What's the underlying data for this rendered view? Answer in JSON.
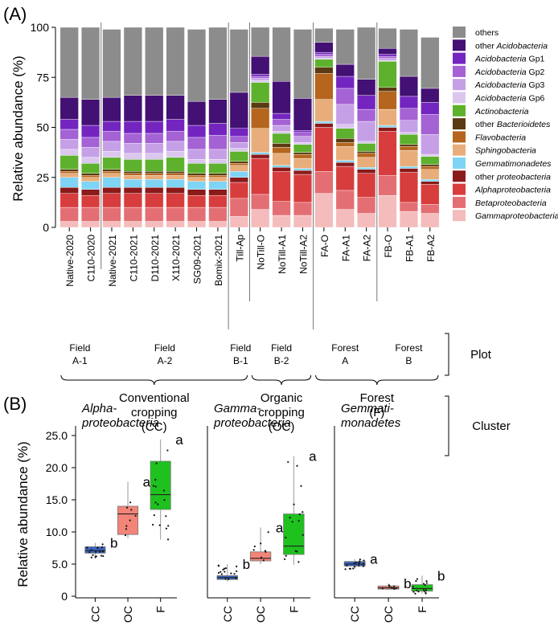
{
  "chart_data": [
    {
      "panel_label": "(A)",
      "type": "bar",
      "stacked": true,
      "ylabel": "Relative abundance (%)",
      "ylim": [
        0,
        100
      ],
      "yticks": [
        0,
        25,
        50,
        75,
        100
      ],
      "categories": [
        "Native-2020",
        "C110-2020",
        "Native-2021",
        "C110-2021",
        "D110-2021",
        "X110-2021",
        "SG09-2021",
        "Bomix-2021",
        "Till-Ap",
        "NoTill-O",
        "NoTill-A1",
        "NoTill-A2",
        "FA-O",
        "FA-A1",
        "FA-A2",
        "FB-O",
        "FB-A1",
        "FB-A2"
      ],
      "series": [
        {
          "name": "Gammaproteobacteria",
          "color": "#f4bcbc",
          "values": [
            3,
            3,
            3,
            3,
            3,
            3,
            3,
            3,
            5.5,
            9,
            6,
            6,
            17,
            9,
            7,
            16,
            8,
            7
          ]
        },
        {
          "name": "Betaproteobacteria",
          "color": "#e36f74",
          "values": [
            7,
            7,
            7,
            7,
            7,
            7,
            7,
            7,
            9,
            7.5,
            7,
            6.5,
            11,
            9.5,
            8,
            10,
            4.5,
            4.5
          ]
        },
        {
          "name": "Alphaproteobacteria",
          "color": "#d83d3e",
          "values": [
            7,
            6,
            7,
            7,
            7,
            7,
            6,
            6,
            8,
            18,
            15,
            14,
            22,
            12,
            12,
            22,
            15,
            10
          ]
        },
        {
          "name": "other proteobacteria",
          "color": "#8b1a1a",
          "values": [
            3,
            3,
            3,
            3,
            3,
            3,
            3,
            3,
            2.5,
            2,
            2,
            2,
            2,
            2,
            2,
            2,
            2,
            1.5
          ]
        },
        {
          "name": "Gemmatimonadetes",
          "color": "#7fd4f5",
          "values": [
            5,
            4,
            5,
            4,
            4,
            4,
            4,
            4,
            3,
            1,
            1,
            1,
            1,
            1,
            1,
            1,
            1,
            1
          ]
        },
        {
          "name": "Sphingobacteria",
          "color": "#e8ad7a",
          "values": [
            2,
            2,
            2,
            2,
            2,
            2,
            2,
            2,
            3,
            12,
            6,
            5,
            11,
            7,
            5,
            8,
            8,
            5
          ]
        },
        {
          "name": "Flavobacteria",
          "color": "#b5651d",
          "values": [
            1,
            1,
            1,
            1,
            1,
            1,
            1,
            1,
            1,
            10,
            3,
            2,
            13,
            2,
            2,
            9,
            2,
            1.5
          ]
        },
        {
          "name": "other Bacterioidetes",
          "color": "#5a3a12",
          "values": [
            1,
            1,
            1,
            1,
            1,
            1,
            1,
            1,
            1,
            3,
            2,
            1,
            3,
            2,
            1,
            2,
            1,
            1
          ]
        },
        {
          "name": "Actinobacteria",
          "color": "#5db12d",
          "values": [
            7,
            5,
            6,
            6,
            6,
            7,
            5,
            5,
            5,
            10,
            5,
            4,
            4,
            5,
            4,
            13,
            5,
            4
          ]
        },
        {
          "name": "Acidobacteria Gp6",
          "color": "#dbc7ee",
          "values": [
            3,
            3,
            3,
            3,
            3,
            3,
            2,
            2,
            1.5,
            1,
            1,
            1,
            0.5,
            2,
            1,
            0.5,
            1,
            1
          ]
        },
        {
          "name": "Acidobacteria Gp3",
          "color": "#c6a0e6",
          "values": [
            5,
            5,
            5,
            5,
            5,
            5,
            5,
            5,
            3,
            1,
            3,
            3,
            1,
            10,
            10,
            1,
            6,
            10
          ]
        },
        {
          "name": "Acidobacteria Gp2",
          "color": "#a462d5",
          "values": [
            5,
            5,
            5,
            5,
            5,
            5,
            6,
            7,
            3,
            1,
            3,
            2,
            1,
            8,
            6,
            1,
            6,
            10
          ]
        },
        {
          "name": "Acidobacteria Gp1",
          "color": "#7425c0",
          "values": [
            5,
            6,
            5,
            6,
            6,
            6,
            6,
            6,
            4,
            1,
            3,
            1,
            1,
            6,
            7,
            1,
            6,
            6
          ]
        },
        {
          "name": "other Acidobacteria",
          "color": "#431073",
          "values": [
            11,
            13,
            12,
            13,
            13,
            12,
            12,
            12,
            18,
            9,
            16,
            16,
            5,
            6,
            8,
            3,
            10,
            7
          ]
        },
        {
          "name": "others",
          "color": "#8c8c8c",
          "values": [
            35,
            36,
            34,
            34,
            34,
            34,
            36,
            36,
            31.5,
            14.5,
            27,
            34.5,
            7,
            17.5,
            26,
            10,
            23.5,
            25.5
          ]
        }
      ],
      "plot_row": {
        "label": "Plot",
        "groups": [
          {
            "line1": "Field",
            "line2": "A-1"
          },
          {
            "line1": "Field",
            "line2": "A-2"
          },
          {
            "line1": "Field",
            "line2": "B-1"
          },
          {
            "line1": "Field",
            "line2": "B-2"
          },
          {
            "line1": "Forest",
            "line2": "A"
          },
          {
            "line1": "Forest",
            "line2": "B"
          }
        ]
      },
      "cluster_row": {
        "label": "Cluster",
        "groups": [
          {
            "line1": "Conventional",
            "line2": "cropping",
            "line3": "(CC)"
          },
          {
            "line1": "Organic",
            "line2": "cropping",
            "line3": "(OC)"
          },
          {
            "line1": "Forest",
            "line2": "(F)"
          }
        ]
      }
    },
    {
      "panel_label": "(B)",
      "type": "box",
      "ylabel": "Relative abundance (%)",
      "ylim": [
        0,
        25
      ],
      "yticks": [
        "0",
        "5.0",
        "10.0",
        "15.0",
        "20.0",
        "25.0"
      ],
      "groups": [
        "CC",
        "OC",
        "F"
      ],
      "colors": {
        "CC": "#3a65c1",
        "OC": "#f28478",
        "F": "#1ec11e"
      },
      "panels": [
        {
          "title_line1": "Alpha-",
          "title_line2": "proteobacteria",
          "boxes": [
            {
              "group": "CC",
              "min": 5.8,
              "q1": 6.7,
              "median": 7.1,
              "q3": 7.7,
              "max": 8.3,
              "letter": "b"
            },
            {
              "group": "OC",
              "min": 9.0,
              "q1": 9.6,
              "median": 12.8,
              "q3": 14.0,
              "max": 17.8,
              "letter": "a"
            },
            {
              "group": "F",
              "min": 8.8,
              "q1": 13.5,
              "median": 15.8,
              "q3": 21.0,
              "max": 24.4,
              "letter": "a"
            }
          ]
        },
        {
          "title_line1": "Gamma-",
          "title_line2": "proteobacteria",
          "boxes": [
            {
              "group": "CC",
              "min": 2.3,
              "q1": 2.6,
              "median": 2.9,
              "q3": 3.2,
              "max": 5.0,
              "letter": "b"
            },
            {
              "group": "OC",
              "min": 5.0,
              "q1": 5.5,
              "median": 5.9,
              "q3": 6.9,
              "max": 10.7,
              "letter": "a"
            },
            {
              "group": "F",
              "min": 4.9,
              "q1": 6.5,
              "median": 7.8,
              "q3": 12.8,
              "max": 21.8,
              "letter": "a"
            }
          ]
        },
        {
          "title_line1": "Gemmati-",
          "title_line2": "monadetes",
          "boxes": [
            {
              "group": "CC",
              "min": 4.2,
              "q1": 4.7,
              "median": 5.0,
              "q3": 5.4,
              "max": 5.8,
              "letter": "a"
            },
            {
              "group": "OC",
              "min": 1.0,
              "q1": 1.1,
              "median": 1.3,
              "q3": 1.6,
              "max": 2.0,
              "letter": "b"
            },
            {
              "group": "F",
              "min": 0.4,
              "q1": 0.8,
              "median": 1.2,
              "q3": 1.8,
              "max": 3.2,
              "letter": "b"
            }
          ]
        }
      ]
    }
  ]
}
